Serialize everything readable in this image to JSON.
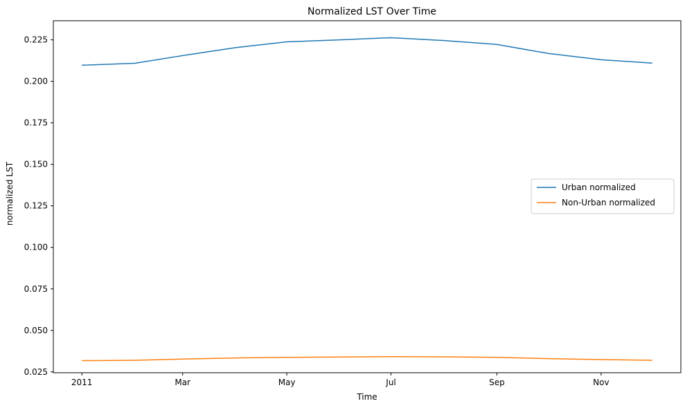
{
  "chart_data": {
    "type": "line",
    "title": "Normalized LST Over Time",
    "xlabel": "Time",
    "ylabel": "normalized LST",
    "x": [
      "2011-01",
      "2011-02",
      "2011-03",
      "2011-04",
      "2011-05",
      "2011-06",
      "2011-07",
      "2011-08",
      "2011-09",
      "2011-10",
      "2011-11",
      "2011-12"
    ],
    "x_tick_labels": [
      "2011",
      "Mar",
      "May",
      "Jul",
      "Sep",
      "Nov"
    ],
    "x_tick_positions": [
      "2011-01",
      "2011-03",
      "2011-05",
      "2011-07",
      "2011-09",
      "2011-11"
    ],
    "ylim": [
      0.0245,
      0.2365
    ],
    "y_ticks": [
      0.025,
      0.05,
      0.075,
      0.1,
      0.125,
      0.15,
      0.175,
      0.2,
      0.225
    ],
    "y_tick_labels": [
      "0.025",
      "0.050",
      "0.075",
      "0.100",
      "0.125",
      "0.150",
      "0.175",
      "0.200",
      "0.225"
    ],
    "grid": false,
    "legend_position": "center-right",
    "series": [
      {
        "name": "Urban normalized",
        "color": "#1f77b4",
        "values": [
          0.2097,
          0.2109,
          0.2155,
          0.2203,
          0.2238,
          0.225,
          0.2263,
          0.2246,
          0.2222,
          0.2168,
          0.213,
          0.211
        ]
      },
      {
        "name": "Non-Urban normalized",
        "color": "#ff7f0e",
        "values": [
          0.0318,
          0.032,
          0.0327,
          0.0334,
          0.0338,
          0.034,
          0.0342,
          0.0341,
          0.0338,
          0.033,
          0.0324,
          0.032
        ]
      }
    ]
  }
}
